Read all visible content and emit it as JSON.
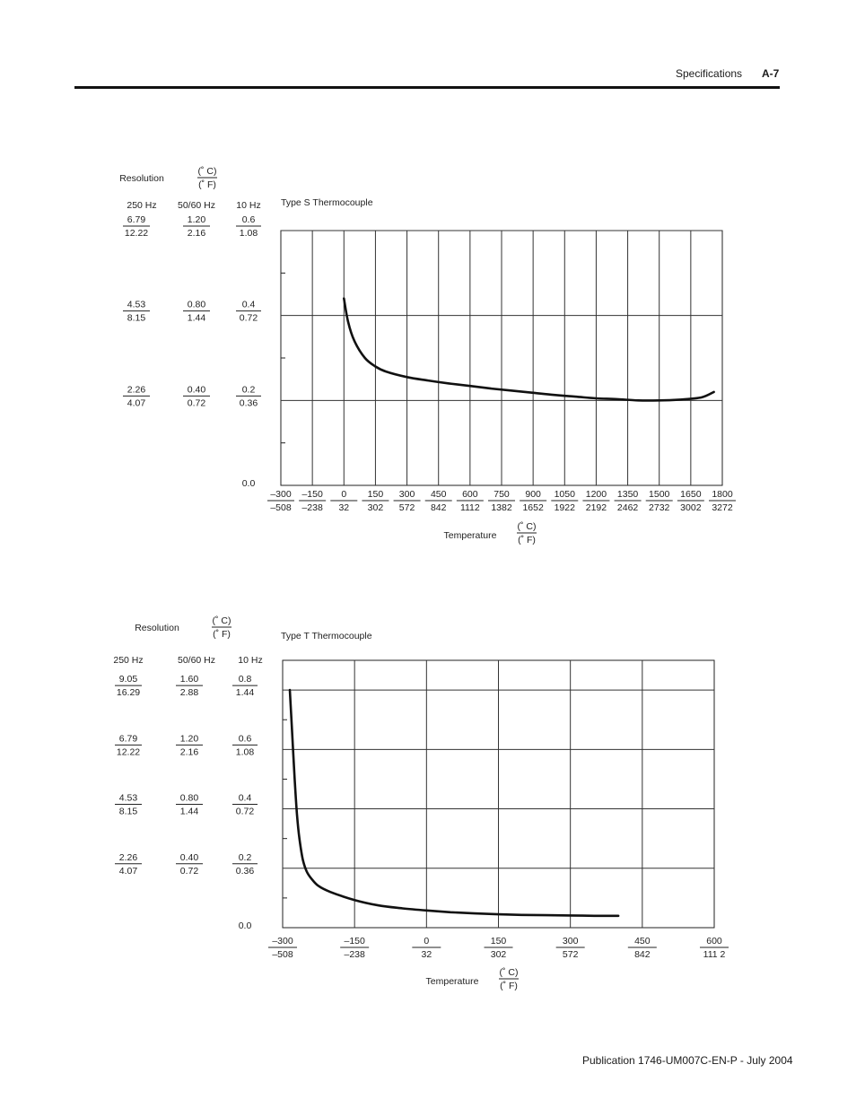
{
  "header": {
    "section": "Specifications",
    "page": "A-7"
  },
  "footer": {
    "publication": "Publication 1746-UM007C-EN-P - July 2004"
  },
  "charts": [
    {
      "title": "Type S Thermocouple",
      "resolution_label": "Resolution",
      "unit_c": "(˚ C)",
      "unit_f": "(˚ F)",
      "rate_headers": [
        "250 Hz",
        "50/60 Hz",
        "10 Hz"
      ],
      "y_levels": [
        {
          "v": 0.6,
          "r250": [
            "6.79",
            "12.22"
          ],
          "r5060": [
            "1.20",
            "2.16"
          ],
          "r10": [
            "0.6",
            "1.08"
          ]
        },
        {
          "v": 0.4,
          "r250": [
            "4.53",
            "8.15"
          ],
          "r5060": [
            "0.80",
            "1.44"
          ],
          "r10": [
            "0.4",
            "0.72"
          ]
        },
        {
          "v": 0.2,
          "r250": [
            "2.26",
            "4.07"
          ],
          "r5060": [
            "0.40",
            "0.72"
          ],
          "r10": [
            "0.2",
            "0.36"
          ]
        }
      ],
      "zero_label": "0.0",
      "x_label": "Temperature",
      "x_ticks_c": [
        "–300",
        "–150",
        "0",
        "150",
        "300",
        "450",
        "600",
        "750",
        "900",
        "1050",
        "1200",
        "1350",
        "1500",
        "1650",
        "1800"
      ],
      "x_ticks_f": [
        "–508",
        "–238",
        "32",
        "302",
        "572",
        "842",
        "1112",
        "1382",
        "1652",
        "1922",
        "2192",
        "2462",
        "2732",
        "3002",
        "3272"
      ]
    },
    {
      "title": "Type  T Thermocouple",
      "resolution_label": "Resolution",
      "unit_c": "(˚ C)",
      "unit_f": "(˚ F)",
      "rate_headers": [
        "250 Hz",
        "50/60 Hz",
        "10 Hz"
      ],
      "y_levels": [
        {
          "v": 0.8,
          "r250": [
            "9.05",
            "16.29"
          ],
          "r5060": [
            "1.60",
            "2.88"
          ],
          "r10": [
            "0.8",
            "1.44"
          ]
        },
        {
          "v": 0.6,
          "r250": [
            "6.79",
            "12.22"
          ],
          "r5060": [
            "1.20",
            "2.16"
          ],
          "r10": [
            "0.6",
            "1.08"
          ]
        },
        {
          "v": 0.4,
          "r250": [
            "4.53",
            "8.15"
          ],
          "r5060": [
            "0.80",
            "1.44"
          ],
          "r10": [
            "0.4",
            "0.72"
          ]
        },
        {
          "v": 0.2,
          "r250": [
            "2.26",
            "4.07"
          ],
          "r5060": [
            "0.40",
            "0.72"
          ],
          "r10": [
            "0.2",
            "0.36"
          ]
        }
      ],
      "zero_label": "0.0",
      "x_label": "Temperature",
      "x_ticks_c": [
        "–300",
        "–150",
        "0",
        "150",
        "300",
        "450",
        "600"
      ],
      "x_ticks_f": [
        "–508",
        "–238",
        "32",
        "302",
        "572",
        "842",
        "111 2"
      ]
    }
  ],
  "chart_data": [
    {
      "type": "line",
      "title": "Type S Thermocouple",
      "xlabel": "Temperature",
      "x_range": [
        -300,
        1800
      ],
      "ylim": [
        0,
        0.6
      ],
      "grid": true,
      "series": [
        {
          "x": [
            0,
            20,
            50,
            100,
            150,
            200,
            300,
            400,
            500,
            600,
            700,
            800,
            900,
            1000,
            1100,
            1200,
            1300,
            1400,
            1500,
            1600,
            1700,
            1760
          ],
          "values": [
            0.44,
            0.385,
            0.34,
            0.3,
            0.28,
            0.268,
            0.255,
            0.247,
            0.24,
            0.234,
            0.228,
            0.223,
            0.218,
            0.213,
            0.209,
            0.205,
            0.203,
            0.2,
            0.2,
            0.202,
            0.207,
            0.22
          ]
        }
      ]
    },
    {
      "type": "line",
      "title": "Type  T Thermocouple",
      "xlabel": "Temperature",
      "x_range": [
        -300,
        600
      ],
      "ylim": [
        0,
        0.9
      ],
      "grid": true,
      "series": [
        {
          "x": [
            -285,
            -280,
            -275,
            -270,
            -265,
            -258,
            -250,
            -240,
            -225,
            -200,
            -150,
            -100,
            -50,
            0,
            50,
            100,
            150,
            200,
            250,
            300,
            350,
            400
          ],
          "values": [
            0.8,
            0.65,
            0.5,
            0.38,
            0.3,
            0.23,
            0.19,
            0.165,
            0.14,
            0.12,
            0.093,
            0.075,
            0.065,
            0.058,
            0.052,
            0.048,
            0.045,
            0.043,
            0.042,
            0.041,
            0.04,
            0.04
          ]
        }
      ]
    }
  ]
}
